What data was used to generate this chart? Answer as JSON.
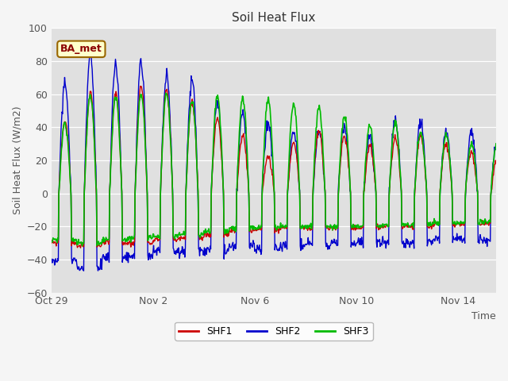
{
  "title": "Soil Heat Flux",
  "xlabel": "Time",
  "ylabel": "Soil Heat Flux (W/m2)",
  "ylim": [
    -60,
    100
  ],
  "yticks": [
    -60,
    -40,
    -20,
    0,
    20,
    40,
    60,
    80,
    100
  ],
  "xtick_labels": [
    "Oct 29",
    "Nov 2",
    "Nov 6",
    "Nov 10",
    "Nov 14"
  ],
  "xtick_positions": [
    0,
    4,
    8,
    12,
    16
  ],
  "xlim": [
    0,
    17.5
  ],
  "annotation_text": "BA_met",
  "line_colors": {
    "SHF1": "#cc0000",
    "SHF2": "#0000cc",
    "SHF3": "#00bb00"
  },
  "line_widths": {
    "SHF1": 1.0,
    "SHF2": 1.0,
    "SHF3": 1.2
  },
  "fig_bg_color": "#f5f5f5",
  "plot_bg_color": "#e0e0e0",
  "grid_color": "#ffffff",
  "n_days": 18,
  "dt_hours": 0.5,
  "shf2_day_peaks": [
    68,
    84,
    77,
    80,
    72,
    68,
    55,
    49,
    43,
    37,
    38,
    40,
    34,
    45,
    43,
    37,
    38,
    30
  ],
  "shf1_day_peaks": [
    44,
    61,
    60,
    65,
    62,
    55,
    46,
    35,
    22,
    31,
    38,
    35,
    28,
    33,
    35,
    30,
    25,
    20
  ],
  "shf3_day_peaks": [
    42,
    60,
    59,
    60,
    61,
    57,
    59,
    57,
    57,
    55,
    52,
    47,
    41,
    43,
    37,
    35,
    30,
    30
  ],
  "shf2_night_vals": [
    -41,
    -45,
    -39,
    -38,
    -35,
    -35,
    -35,
    -32,
    -34,
    -32,
    -31,
    -30,
    -30,
    -30,
    -30,
    -28,
    -28,
    -28
  ],
  "shf1_night_vals": [
    -30,
    -32,
    -30,
    -30,
    -28,
    -27,
    -25,
    -23,
    -22,
    -21,
    -21,
    -21,
    -21,
    -20,
    -20,
    -19,
    -19,
    -18
  ],
  "shf3_night_vals": [
    -28,
    -30,
    -28,
    -27,
    -26,
    -25,
    -23,
    -21,
    -21,
    -20,
    -20,
    -20,
    -20,
    -19,
    -19,
    -18,
    -18,
    -17
  ]
}
